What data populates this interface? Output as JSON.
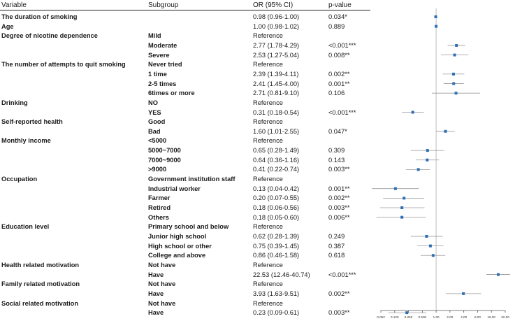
{
  "headers": {
    "variable": "Variable",
    "subgroup": "Subgroup",
    "or": "OR (95% CI)",
    "p": "p-value"
  },
  "chart_data": {
    "type": "forest",
    "x_scale": "log2",
    "xlim": [
      0.0625,
      32
    ],
    "reference_line": 1.0,
    "ticks": [
      "0.062",
      "0.125",
      "0.250",
      "0.500",
      "1.00",
      "2.00",
      "4.00",
      "8.00",
      "16.00",
      "32.00"
    ],
    "tick_values": [
      0.0625,
      0.125,
      0.25,
      0.5,
      1,
      2,
      4,
      8,
      16,
      32
    ],
    "rows": [
      {
        "variable": "The duration of smoking",
        "subgroup": "",
        "or_text": "0.98 (0.96-1.00)",
        "p": "0.034*",
        "or": 0.98,
        "lo": 0.96,
        "hi": 1.0
      },
      {
        "variable": "Age",
        "subgroup": "",
        "or_text": "1.00 (0.98-1.02)",
        "p": "0.889",
        "or": 1.0,
        "lo": 0.98,
        "hi": 1.02
      },
      {
        "variable": "Degree of nicotine dependence",
        "subgroup": "Mild",
        "or_text": "Reference",
        "p": ""
      },
      {
        "variable": "",
        "subgroup": "Moderate",
        "or_text": "2.77 (1.78-4.29)",
        "p": "<0.001***",
        "or": 2.77,
        "lo": 1.78,
        "hi": 4.29
      },
      {
        "variable": "",
        "subgroup": "Severe",
        "or_text": "2.53 (1.27-5.04)",
        "p": "0.008**",
        "or": 2.53,
        "lo": 1.27,
        "hi": 5.04
      },
      {
        "variable": "The number of attempts to quit smoking",
        "subgroup": "Never tried",
        "or_text": "Reference",
        "p": ""
      },
      {
        "variable": "",
        "subgroup": "1 time",
        "or_text": "2.39 (1.39-4.11)",
        "p": "0.002**",
        "or": 2.39,
        "lo": 1.39,
        "hi": 4.11
      },
      {
        "variable": "",
        "subgroup": "2-5 times",
        "or_text": "2.41 (1.45-4.00)",
        "p": "0.001**",
        "or": 2.41,
        "lo": 1.45,
        "hi": 4.0
      },
      {
        "variable": "",
        "subgroup": "6times or more",
        "or_text": "2.71 (0.81-9.10)",
        "p": "0.106",
        "or": 2.71,
        "lo": 0.81,
        "hi": 9.1
      },
      {
        "variable": "Drinking",
        "subgroup": "NO",
        "or_text": "Reference",
        "p": ""
      },
      {
        "variable": "",
        "subgroup": "YES",
        "or_text": "0.31 (0.18-0.54)",
        "p": "<0.001***",
        "or": 0.31,
        "lo": 0.18,
        "hi": 0.54
      },
      {
        "variable": "Self-reported health",
        "subgroup": "Good",
        "or_text": "Reference",
        "p": ""
      },
      {
        "variable": "",
        "subgroup": "Bad",
        "or_text": "1.60 (1.01-2.55)",
        "p": "0.047*",
        "or": 1.6,
        "lo": 1.01,
        "hi": 2.55
      },
      {
        "variable": "Monthly income",
        "subgroup": "<5000",
        "or_text": "Reference",
        "p": ""
      },
      {
        "variable": "",
        "subgroup": "5000~7000",
        "or_text": "0.65 (0.28-1.49)",
        "p": "0.309",
        "or": 0.65,
        "lo": 0.28,
        "hi": 1.49
      },
      {
        "variable": "",
        "subgroup": "7000~9000",
        "or_text": "0.64 (0.36-1.16)",
        "p": "0.143",
        "or": 0.64,
        "lo": 0.36,
        "hi": 1.16
      },
      {
        "variable": "",
        "subgroup": ">9000",
        "or_text": "0.41 (0.22-0.74)",
        "p": "0.003**",
        "or": 0.41,
        "lo": 0.22,
        "hi": 0.74
      },
      {
        "variable": "Occupation",
        "subgroup": "Government institution staff",
        "or_text": "Reference",
        "p": ""
      },
      {
        "variable": "",
        "subgroup": "Industrial worker",
        "or_text": "0.13 (0.04-0.42)",
        "p": "0.001**",
        "or": 0.13,
        "lo": 0.04,
        "hi": 0.42
      },
      {
        "variable": "",
        "subgroup": "Farmer",
        "or_text": "0.20 (0.07-0.55)",
        "p": "0.002**",
        "or": 0.2,
        "lo": 0.07,
        "hi": 0.55
      },
      {
        "variable": "",
        "subgroup": "Retired",
        "or_text": "0.18 (0.06-0.56)",
        "p": "0.003**",
        "or": 0.18,
        "lo": 0.06,
        "hi": 0.56
      },
      {
        "variable": "",
        "subgroup": "Others",
        "or_text": "0.18 (0.05-0.60)",
        "p": "0.006**",
        "or": 0.18,
        "lo": 0.05,
        "hi": 0.6
      },
      {
        "variable": "Education level",
        "subgroup": "Primary school and below",
        "or_text": "Reference",
        "p": ""
      },
      {
        "variable": "",
        "subgroup": "Junior high school",
        "or_text": "0.62 (0.28-1.39)",
        "p": "0.249",
        "or": 0.62,
        "lo": 0.28,
        "hi": 1.39
      },
      {
        "variable": "",
        "subgroup": "High school or other",
        "or_text": "0.75 (0.39-1.45)",
        "p": "0.387",
        "or": 0.75,
        "lo": 0.39,
        "hi": 1.45
      },
      {
        "variable": "",
        "subgroup": "College and above",
        "or_text": "0.86 (0.46-1.58)",
        "p": "0.618",
        "or": 0.86,
        "lo": 0.46,
        "hi": 1.58
      },
      {
        "variable": "Health related motivation",
        "subgroup": "Not have",
        "or_text": "Reference",
        "p": ""
      },
      {
        "variable": "",
        "subgroup": "Have",
        "or_text": "22.53 (12.46-40.74)",
        "p": "<0.001***",
        "or": 22.53,
        "lo": 12.46,
        "hi": 40.74
      },
      {
        "variable": "Family related motivation",
        "subgroup": "Not have",
        "or_text": "Reference",
        "p": ""
      },
      {
        "variable": "",
        "subgroup": "Have",
        "or_text": "3.93 (1.63-9.51)",
        "p": "0.002**",
        "or": 3.93,
        "lo": 1.63,
        "hi": 9.51
      },
      {
        "variable": "Social related motivation",
        "subgroup": "Not have",
        "or_text": "Reference",
        "p": ""
      },
      {
        "variable": "",
        "subgroup": "Have",
        "or_text": "0.23 (0.09-0.61)",
        "p": "0.003**",
        "or": 0.23,
        "lo": 0.09,
        "hi": 0.61
      }
    ]
  },
  "colors": {
    "marker": "#2f6fb5",
    "ci": "#9a9a9a",
    "axis": "#555555",
    "refline": "#bdbdbd"
  }
}
